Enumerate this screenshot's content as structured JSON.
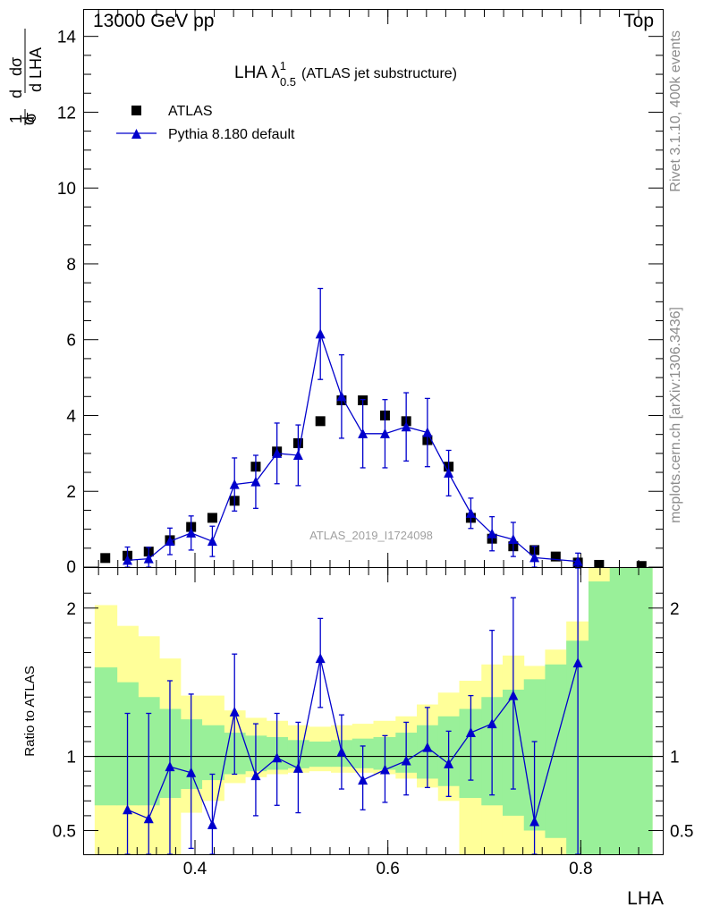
{
  "header": {
    "left": "13000 GeV pp",
    "right": "Top"
  },
  "side_text": {
    "rivet": "Rivet 3.1.10,  400k events",
    "mcplots": "mcplots.cern.ch [arXiv:1306.3436]"
  },
  "colors": {
    "mc": "#0000cc",
    "data": "#000000",
    "band_inner": "#99f099",
    "band_outer": "#ffff99"
  },
  "chart_data": [
    {
      "type": "scatter",
      "title_main": "LHA λ",
      "title_sup": "1",
      "title_sub": "0.5",
      "title_rest": "(ATLAS jet substructure)",
      "ylabel_parts": [
        "1",
        "σ",
        "d",
        "dσ",
        "d LHA"
      ],
      "ylim": [
        0,
        14.7
      ],
      "yticks": [
        0,
        2,
        4,
        6,
        8,
        10,
        12,
        14
      ],
      "xlim": [
        0.285,
        0.885
      ],
      "watermark": "ATLAS_2019_I1724098",
      "legend_position": "top-left",
      "series": [
        {
          "name": "ATLAS",
          "marker": "square",
          "x": [
            0.307,
            0.33,
            0.352,
            0.374,
            0.396,
            0.418,
            0.441,
            0.463,
            0.485,
            0.507,
            0.53,
            0.552,
            0.574,
            0.597,
            0.619,
            0.641,
            0.663,
            0.686,
            0.708,
            0.73,
            0.752,
            0.774,
            0.797,
            0.819,
            0.863
          ],
          "y": [
            0.24,
            0.3,
            0.41,
            0.71,
            1.06,
            1.3,
            1.75,
            2.65,
            3.05,
            3.27,
            3.85,
            4.4,
            4.4,
            4.0,
            3.85,
            3.35,
            2.65,
            1.3,
            0.75,
            0.55,
            0.45,
            0.28,
            0.12,
            0.06,
            0.03
          ]
        },
        {
          "name": "Pythia 8.180 default",
          "marker": "triangle",
          "x": [
            0.33,
            0.352,
            0.374,
            0.396,
            0.418,
            0.441,
            0.463,
            0.485,
            0.507,
            0.53,
            0.552,
            0.574,
            0.597,
            0.619,
            0.641,
            0.663,
            0.686,
            0.708,
            0.73,
            0.752,
            0.797
          ],
          "y": [
            0.18,
            0.22,
            0.68,
            0.9,
            0.68,
            2.18,
            2.25,
            3.0,
            2.95,
            6.15,
            4.5,
            3.52,
            3.52,
            3.7,
            3.55,
            2.48,
            1.42,
            0.88,
            0.73,
            0.25,
            0.15
          ],
          "err": [
            0.35,
            0.3,
            0.35,
            0.45,
            0.4,
            0.7,
            0.7,
            0.8,
            0.8,
            1.2,
            1.1,
            0.9,
            0.9,
            0.9,
            0.9,
            0.6,
            0.4,
            0.45,
            0.45,
            0.3,
            0.22
          ]
        }
      ]
    },
    {
      "type": "scatter",
      "ylabel": "Ratio to ATLAS",
      "xlabel": "LHA",
      "ylim": [
        0.34,
        2.27
      ],
      "yticks": [
        0.5,
        1,
        2
      ],
      "xlim": [
        0.285,
        0.885
      ],
      "xticks": [
        0.4,
        0.6,
        0.8
      ],
      "bands": {
        "edges": [
          0.296,
          0.319,
          0.341,
          0.363,
          0.385,
          0.407,
          0.43,
          0.452,
          0.474,
          0.496,
          0.518,
          0.541,
          0.563,
          0.585,
          0.608,
          0.63,
          0.652,
          0.674,
          0.697,
          0.719,
          0.741,
          0.763,
          0.785,
          0.808,
          0.83,
          0.852,
          0.874
        ],
        "outer_low": [
          0.34,
          0.34,
          0.34,
          0.34,
          0.62,
          0.7,
          0.82,
          0.86,
          0.88,
          0.89,
          0.9,
          0.89,
          0.89,
          0.88,
          0.85,
          0.79,
          0.7,
          0.34,
          0.34,
          0.34,
          0.34,
          0.34,
          0.34,
          0.34,
          0.34,
          0.34
        ],
        "outer_high": [
          2.02,
          1.88,
          1.81,
          1.66,
          1.41,
          1.41,
          1.31,
          1.26,
          1.24,
          1.21,
          1.2,
          1.21,
          1.22,
          1.24,
          1.27,
          1.35,
          1.43,
          1.51,
          1.62,
          1.68,
          1.61,
          1.72,
          1.91,
          2.27,
          2.27,
          2.27
        ],
        "inner_low": [
          0.67,
          0.67,
          0.67,
          0.72,
          0.78,
          0.84,
          0.88,
          0.9,
          0.91,
          0.92,
          0.93,
          0.93,
          0.92,
          0.91,
          0.89,
          0.85,
          0.8,
          0.72,
          0.67,
          0.6,
          0.5,
          0.45,
          0.34,
          0.34,
          0.34,
          0.34
        ],
        "inner_high": [
          1.6,
          1.5,
          1.4,
          1.32,
          1.25,
          1.21,
          1.16,
          1.14,
          1.13,
          1.11,
          1.1,
          1.11,
          1.12,
          1.13,
          1.16,
          1.21,
          1.27,
          1.32,
          1.4,
          1.45,
          1.52,
          1.62,
          1.78,
          2.18,
          2.27,
          2.27
        ]
      },
      "series": [
        {
          "name": "Pythia 8.180 default",
          "x": [
            0.33,
            0.352,
            0.374,
            0.396,
            0.418,
            0.441,
            0.463,
            0.485,
            0.507,
            0.53,
            0.552,
            0.574,
            0.597,
            0.619,
            0.641,
            0.663,
            0.686,
            0.708,
            0.73,
            0.752,
            0.797
          ],
          "y": [
            0.64,
            0.58,
            0.93,
            0.89,
            0.54,
            1.3,
            0.87,
            0.99,
            0.92,
            1.66,
            1.03,
            0.84,
            0.91,
            0.97,
            1.06,
            0.95,
            1.16,
            1.22,
            1.41,
            0.56,
            1.63
          ],
          "ylo": [
            0.24,
            0.22,
            0.34,
            0.38,
            0.2,
            0.88,
            0.6,
            0.67,
            0.62,
            1.33,
            0.78,
            0.64,
            0.69,
            0.74,
            0.79,
            0.73,
            0.84,
            0.74,
            0.78,
            0.2,
            0.34
          ],
          "yhi": [
            1.29,
            1.29,
            1.51,
            1.42,
            0.88,
            1.69,
            1.22,
            1.29,
            1.23,
            1.93,
            1.28,
            1.07,
            1.14,
            1.23,
            1.33,
            1.17,
            1.41,
            1.85,
            2.07,
            1.1,
            2.27
          ]
        }
      ]
    }
  ]
}
